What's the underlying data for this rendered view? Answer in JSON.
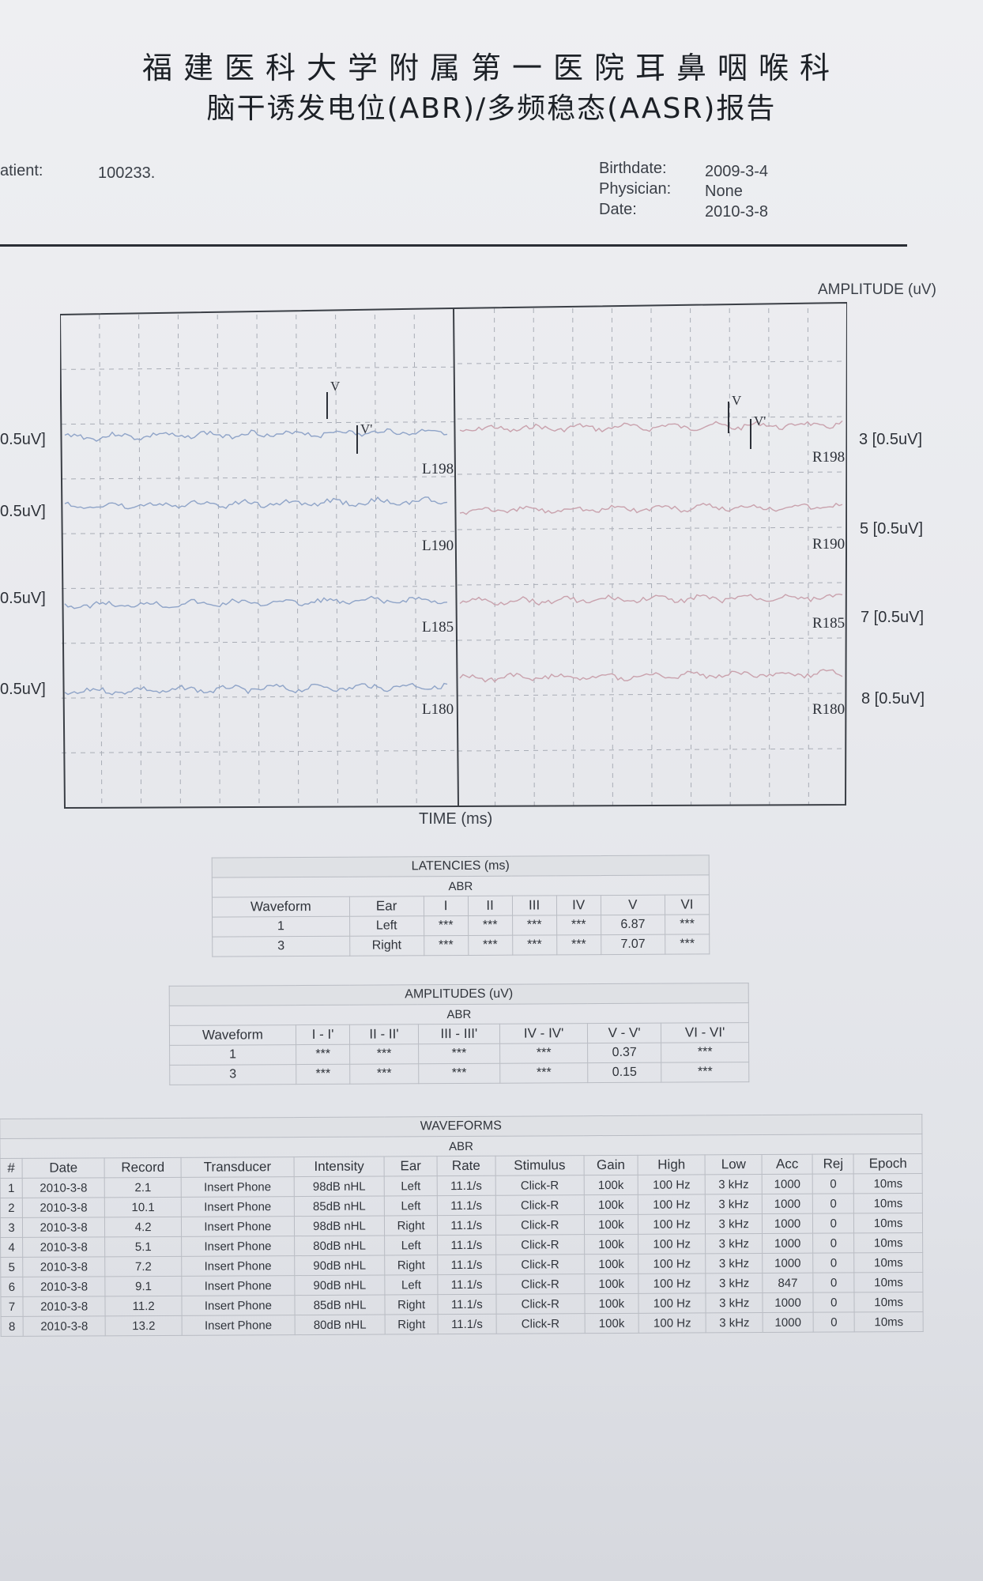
{
  "title_line1": "福建医科大学附属第一医院耳鼻咽喉科",
  "title_line2": "脑干诱发电位(ABR)/多频稳态(AASR)报告",
  "header": {
    "patient_label": "atient:",
    "patient_id": "100233.",
    "birthdate_label": "Birthdate:",
    "birthdate": "2009-3-4",
    "physician_label": "Physician:",
    "physician": "None",
    "date_label": "Date:",
    "date": "2010-3-8"
  },
  "chart_data": {
    "type": "line",
    "title": "",
    "ylabel": "AMPLITUDE (uV)",
    "xlabel": "TIME (ms)",
    "grid": true,
    "left_panel": {
      "traces": [
        "L198",
        "L190",
        "L185",
        "L180"
      ],
      "scales": [
        "0.5uV]",
        "0.5uV]",
        "0.5uV]",
        "0.5uV]"
      ],
      "markers": [
        "V",
        "V'"
      ]
    },
    "right_panel": {
      "traces": [
        "R198",
        "R190",
        "R185",
        "R180"
      ],
      "scales": [
        "3 [0.5uV]",
        "5 [0.5uV]",
        "7 [0.5uV]",
        "8 [0.5uV]"
      ],
      "markers": [
        "V",
        "V'"
      ]
    }
  },
  "latencies": {
    "caption": "LATENCIES (ms)",
    "subcaption": "ABR",
    "headers": [
      "Waveform",
      "Ear",
      "I",
      "II",
      "III",
      "IV",
      "V",
      "VI"
    ],
    "rows": [
      [
        "1",
        "Left",
        "***",
        "***",
        "***",
        "***",
        "6.87",
        "***"
      ],
      [
        "3",
        "Right",
        "***",
        "***",
        "***",
        "***",
        "7.07",
        "***"
      ]
    ]
  },
  "amplitudes": {
    "caption": "AMPLITUDES (uV)",
    "subcaption": "ABR",
    "headers": [
      "Waveform",
      "I - I'",
      "II - II'",
      "III - III'",
      "IV - IV'",
      "V - V'",
      "VI - VI'"
    ],
    "rows": [
      [
        "1",
        "***",
        "***",
        "***",
        "***",
        "0.37",
        "***"
      ],
      [
        "3",
        "***",
        "***",
        "***",
        "***",
        "0.15",
        "***"
      ]
    ]
  },
  "waveforms": {
    "caption": "WAVEFORMS",
    "subcaption": "ABR",
    "headers": [
      "#",
      "Date",
      "Record",
      "Transducer",
      "Intensity",
      "Ear",
      "Rate",
      "Stimulus",
      "Gain",
      "High",
      "Low",
      "Acc",
      "Rej",
      "Epoch"
    ],
    "rows": [
      [
        "1",
        "2010-3-8",
        "2.1",
        "Insert Phone",
        "98dB nHL",
        "Left",
        "11.1/s",
        "Click-R",
        "100k",
        "100 Hz",
        "3 kHz",
        "1000",
        "0",
        "10ms"
      ],
      [
        "2",
        "2010-3-8",
        "10.1",
        "Insert Phone",
        "85dB nHL",
        "Left",
        "11.1/s",
        "Click-R",
        "100k",
        "100 Hz",
        "3 kHz",
        "1000",
        "0",
        "10ms"
      ],
      [
        "3",
        "2010-3-8",
        "4.2",
        "Insert Phone",
        "98dB nHL",
        "Right",
        "11.1/s",
        "Click-R",
        "100k",
        "100 Hz",
        "3 kHz",
        "1000",
        "0",
        "10ms"
      ],
      [
        "4",
        "2010-3-8",
        "5.1",
        "Insert Phone",
        "80dB nHL",
        "Left",
        "11.1/s",
        "Click-R",
        "100k",
        "100 Hz",
        "3 kHz",
        "1000",
        "0",
        "10ms"
      ],
      [
        "5",
        "2010-3-8",
        "7.2",
        "Insert Phone",
        "90dB nHL",
        "Right",
        "11.1/s",
        "Click-R",
        "100k",
        "100 Hz",
        "3 kHz",
        "1000",
        "0",
        "10ms"
      ],
      [
        "6",
        "2010-3-8",
        "9.1",
        "Insert Phone",
        "90dB nHL",
        "Left",
        "11.1/s",
        "Click-R",
        "100k",
        "100 Hz",
        "3 kHz",
        "847",
        "0",
        "10ms"
      ],
      [
        "7",
        "2010-3-8",
        "11.2",
        "Insert Phone",
        "85dB nHL",
        "Right",
        "11.1/s",
        "Click-R",
        "100k",
        "100 Hz",
        "3 kHz",
        "1000",
        "0",
        "10ms"
      ],
      [
        "8",
        "2010-3-8",
        "13.2",
        "Insert Phone",
        "80dB nHL",
        "Right",
        "11.1/s",
        "Click-R",
        "100k",
        "100 Hz",
        "3 kHz",
        "1000",
        "0",
        "10ms"
      ]
    ]
  },
  "colors": {
    "left_trace": "#8fa4c8",
    "right_trace": "#c9a2ad",
    "grid": "#a9adb6"
  }
}
